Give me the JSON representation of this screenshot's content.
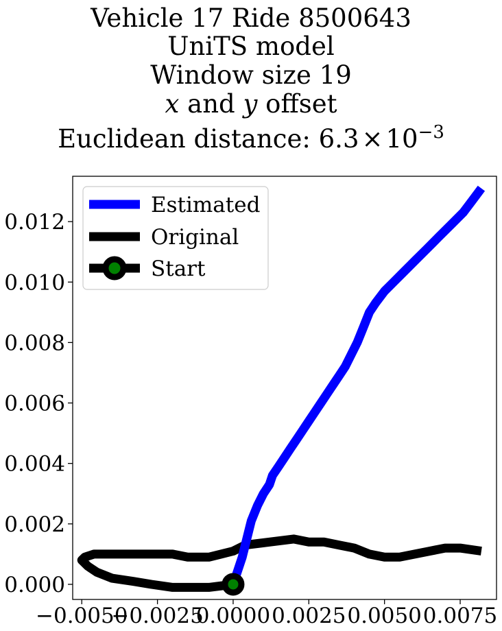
{
  "chart_data": {
    "type": "line",
    "title_lines": [
      "Vehicle 17 Ride 8500643",
      "UniTS model",
      "Window size 19",
      "x and y offset",
      "Euclidean distance: 6.3×10⁻³"
    ],
    "title_parts": {
      "x_var": "x",
      "and_word": " and ",
      "y_var": "y",
      "offset_word": " offset",
      "euclid_prefix": "Euclidean distance: ",
      "euclid_mantissa": "6.3",
      "euclid_times": "×",
      "euclid_base": "10",
      "euclid_exp": "−3"
    },
    "xlabel": "",
    "ylabel": "",
    "xlim": [
      -0.0053,
      0.0087
    ],
    "ylim": [
      -0.0005,
      0.0135
    ],
    "xticks": [
      -0.005,
      -0.0025,
      0.0,
      0.0025,
      0.005,
      0.0075
    ],
    "xtick_labels": [
      "−0.0050",
      "−0.0025",
      "0.0000",
      "0.0025",
      "0.0050",
      "0.0075"
    ],
    "yticks": [
      0.0,
      0.002,
      0.004,
      0.006,
      0.008,
      0.01,
      0.012
    ],
    "ytick_labels": [
      "0.000",
      "0.002",
      "0.004",
      "0.006",
      "0.008",
      "0.010",
      "0.012"
    ],
    "grid": false,
    "legend_position": "top-left",
    "series": [
      {
        "name": "Estimated",
        "color": "#0000ff",
        "x": [
          0.0,
          0.0003,
          0.0005,
          0.0006,
          0.0008,
          0.001,
          0.0012,
          0.0013,
          0.0015,
          0.0017,
          0.0019,
          0.0021,
          0.0023,
          0.0025,
          0.0027,
          0.0029,
          0.0031,
          0.0033,
          0.0035,
          0.0037,
          0.0039,
          0.0041,
          0.0043,
          0.0045,
          0.0047,
          0.005,
          0.0053,
          0.0056,
          0.006,
          0.0064,
          0.0068,
          0.0072,
          0.0076,
          0.0079,
          0.0082
        ],
        "y": [
          0.0,
          0.0009,
          0.0017,
          0.0021,
          0.0026,
          0.003,
          0.0033,
          0.0036,
          0.0039,
          0.0042,
          0.0045,
          0.0048,
          0.0051,
          0.0054,
          0.0057,
          0.006,
          0.0063,
          0.0066,
          0.0069,
          0.0072,
          0.0076,
          0.008,
          0.0085,
          0.009,
          0.0093,
          0.0097,
          0.01,
          0.0103,
          0.0107,
          0.0111,
          0.0115,
          0.0119,
          0.0123,
          0.0127,
          0.0131
        ]
      },
      {
        "name": "Original",
        "color": "#000000",
        "x": [
          0.0,
          -0.0008,
          -0.0014,
          -0.002,
          -0.0027,
          -0.0033,
          -0.004,
          -0.0045,
          -0.0048,
          -0.005,
          -0.0049,
          -0.0046,
          -0.004,
          -0.003,
          -0.002,
          -0.0015,
          -0.0012,
          -0.0008,
          -0.0004,
          0.0,
          0.0004,
          0.0012,
          0.002,
          0.0025,
          0.003,
          0.0035,
          0.004,
          0.0045,
          0.005,
          0.0055,
          0.006,
          0.0065,
          0.007,
          0.0075,
          0.0082
        ],
        "y": [
          0.0,
          -0.0001,
          -0.0001,
          -0.0001,
          -0.0,
          0.0001,
          0.0002,
          0.0004,
          0.0006,
          0.0008,
          0.0009,
          0.001,
          0.001,
          0.001,
          0.001,
          0.0009,
          0.0009,
          0.0009,
          0.001,
          0.0011,
          0.0013,
          0.0014,
          0.0015,
          0.0014,
          0.0014,
          0.0013,
          0.0012,
          0.001,
          0.0009,
          0.0009,
          0.001,
          0.0011,
          0.0012,
          0.0012,
          0.0011
        ]
      }
    ],
    "start_marker": {
      "name": "Start",
      "x": 0.0,
      "y": 0.0,
      "face_color": "#008000",
      "edge_color": "#000000"
    }
  }
}
